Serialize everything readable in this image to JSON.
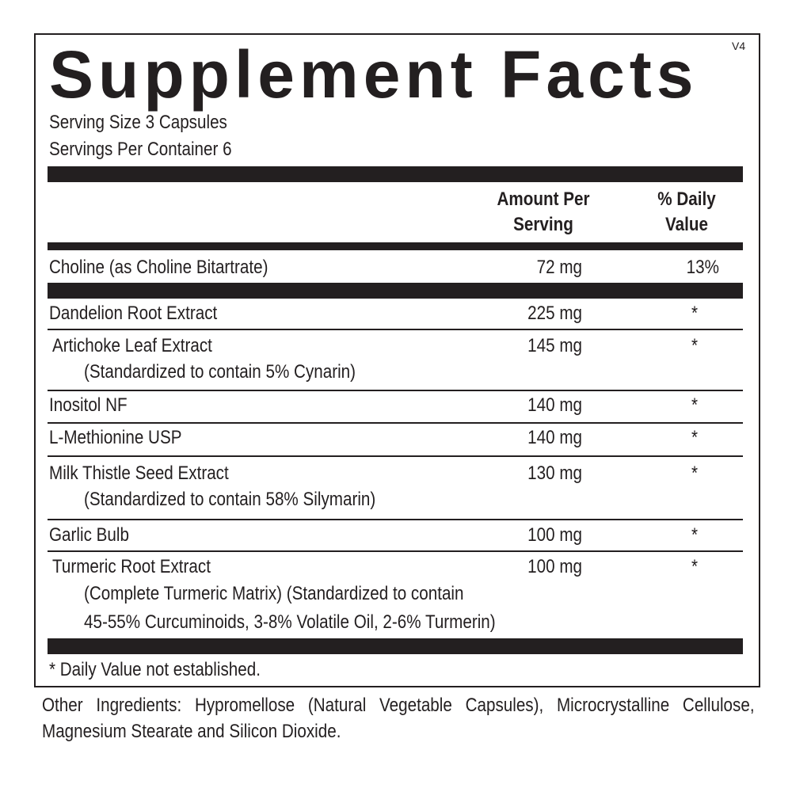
{
  "title": "Supplement Facts",
  "version": "V4",
  "serving_size": "Serving Size 3 Capsules",
  "servings_per_container": "Servings Per Container  6",
  "columns": {
    "amount_line1": "Amount Per",
    "amount_line2": "Serving",
    "dv_line1": "% Daily",
    "dv_line2": "Value"
  },
  "choline": {
    "name": "Choline (as Choline Bitartrate)",
    "amount": "72 mg",
    "dv": "13%"
  },
  "rows": [
    {
      "name": "Dandelion Root Extract",
      "amount": "225 mg",
      "dv": "*"
    },
    {
      "name": "Artichoke Leaf Extract",
      "sub": [
        "(Standardized to contain 5% Cynarin)"
      ],
      "amount": "145 mg",
      "dv": "*"
    },
    {
      "name": "Inositol NF",
      "amount": "140 mg",
      "dv": "*"
    },
    {
      "name": "L-Methionine USP",
      "amount": "140 mg",
      "dv": "*"
    },
    {
      "name": "Milk Thistle Seed Extract",
      "sub": [
        "(Standardized to contain 58% Silymarin)"
      ],
      "amount": "130 mg",
      "dv": "*"
    },
    {
      "name": "Garlic Bulb",
      "amount": "100 mg",
      "dv": "*"
    },
    {
      "name": "Turmeric Root Extract",
      "sub": [
        "(Complete Turmeric Matrix) (Standardized to contain",
        "45-55% Curcuminoids, 3-8% Volatile Oil, 2-6% Turmerin)"
      ],
      "amount": "100 mg",
      "dv": "*"
    }
  ],
  "footnote": "* Daily Value not established.",
  "other_ingredients": "Other Ingredients: Hypromellose (Natural Vegetable Capsules), Microcrystalline Cellulose, Magnesium Stearate and Silicon Dioxide."
}
